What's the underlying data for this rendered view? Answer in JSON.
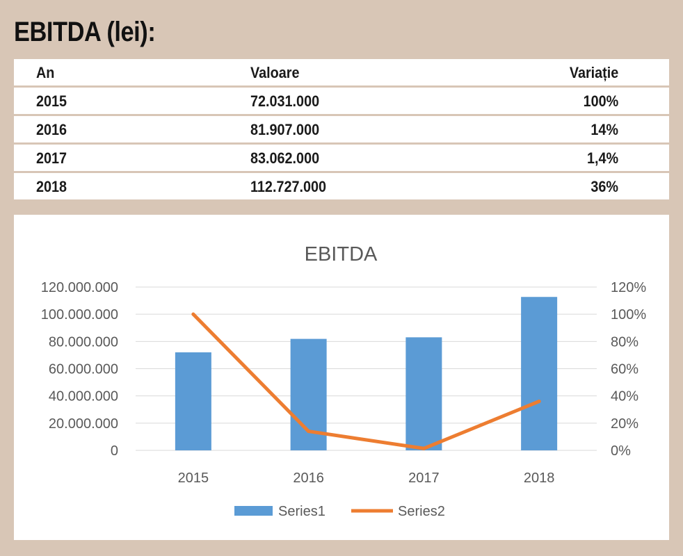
{
  "page": {
    "title": "EBITDA (lei):"
  },
  "table": {
    "headers": [
      "An",
      "Valoare",
      "Variație"
    ],
    "rows": [
      [
        "2015",
        "72.031.000",
        "100%"
      ],
      [
        "2016",
        "81.907.000",
        "14%"
      ],
      [
        "2017",
        "83.062.000",
        "1,4%"
      ],
      [
        "2018",
        "112.727.000",
        "36%"
      ]
    ]
  },
  "colors": {
    "bar": "#5b9bd5",
    "line": "#ed7d31",
    "background": "#d8c6b6",
    "gridline": "#d9d9d9"
  },
  "chart_data": {
    "type": "bar",
    "title": "EBITDA",
    "categories": [
      "2015",
      "2016",
      "2017",
      "2018"
    ],
    "series": [
      {
        "name": "Series1",
        "type": "bar",
        "axis": "left",
        "values": [
          72031000,
          81907000,
          83062000,
          112727000
        ]
      },
      {
        "name": "Series2",
        "type": "line",
        "axis": "right",
        "values": [
          1.0,
          0.14,
          0.014,
          0.36
        ]
      }
    ],
    "ylim": [
      0,
      120000000
    ],
    "y2lim": [
      0,
      1.2
    ],
    "yticks": [
      "0",
      "20.000.000",
      "40.000.000",
      "60.000.000",
      "80.000.000",
      "100.000.000",
      "120.000.000"
    ],
    "y2ticks": [
      "0%",
      "20%",
      "40%",
      "60%",
      "80%",
      "100%",
      "120%"
    ],
    "grid": true,
    "legend": "bottom"
  }
}
